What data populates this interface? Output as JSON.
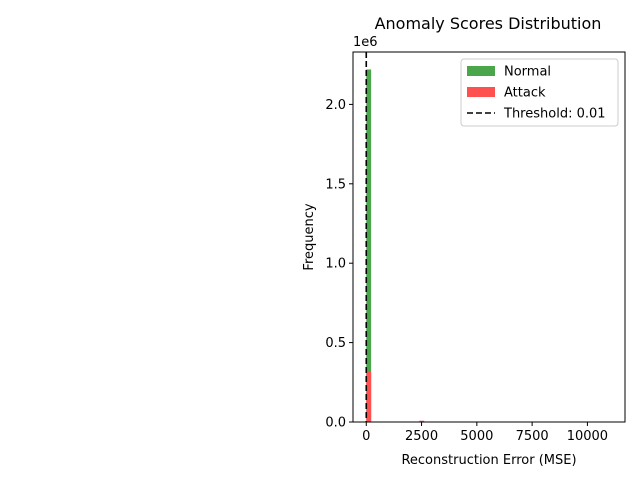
{
  "chart_data": {
    "type": "histogram",
    "title": "Anomaly Scores Distribution",
    "xlabel": "Reconstruction Error (MSE)",
    "ylabel": "Frequency",
    "y_offset_text": "1e6",
    "xlim": [
      -600,
      11700
    ],
    "ylim": [
      0,
      2330000
    ],
    "x_ticks": [
      0,
      2500,
      5000,
      7500,
      10000
    ],
    "x_tick_labels": [
      "0",
      "2500",
      "5000",
      "7500",
      "10000"
    ],
    "y_ticks": [
      0,
      500000,
      1000000,
      1500000,
      2000000
    ],
    "y_tick_labels": [
      "0.0",
      "0.5",
      "1.0",
      "1.5",
      "2.0"
    ],
    "grid": false,
    "legend_position": "top-right",
    "series": [
      {
        "name": "Normal",
        "color": "#4ba64b",
        "bins": [
          {
            "x0": 0,
            "x1": 220,
            "value": 2220000
          }
        ]
      },
      {
        "name": "Attack",
        "color": "#ff5050",
        "bins": [
          {
            "x0": 0,
            "x1": 220,
            "value": 320000
          },
          {
            "x0": 2400,
            "x1": 2620,
            "value": 8000
          }
        ]
      }
    ],
    "threshold": {
      "label": "Threshold: 0.01",
      "value": 0.01,
      "color": "#000000",
      "style": "dashed"
    }
  }
}
